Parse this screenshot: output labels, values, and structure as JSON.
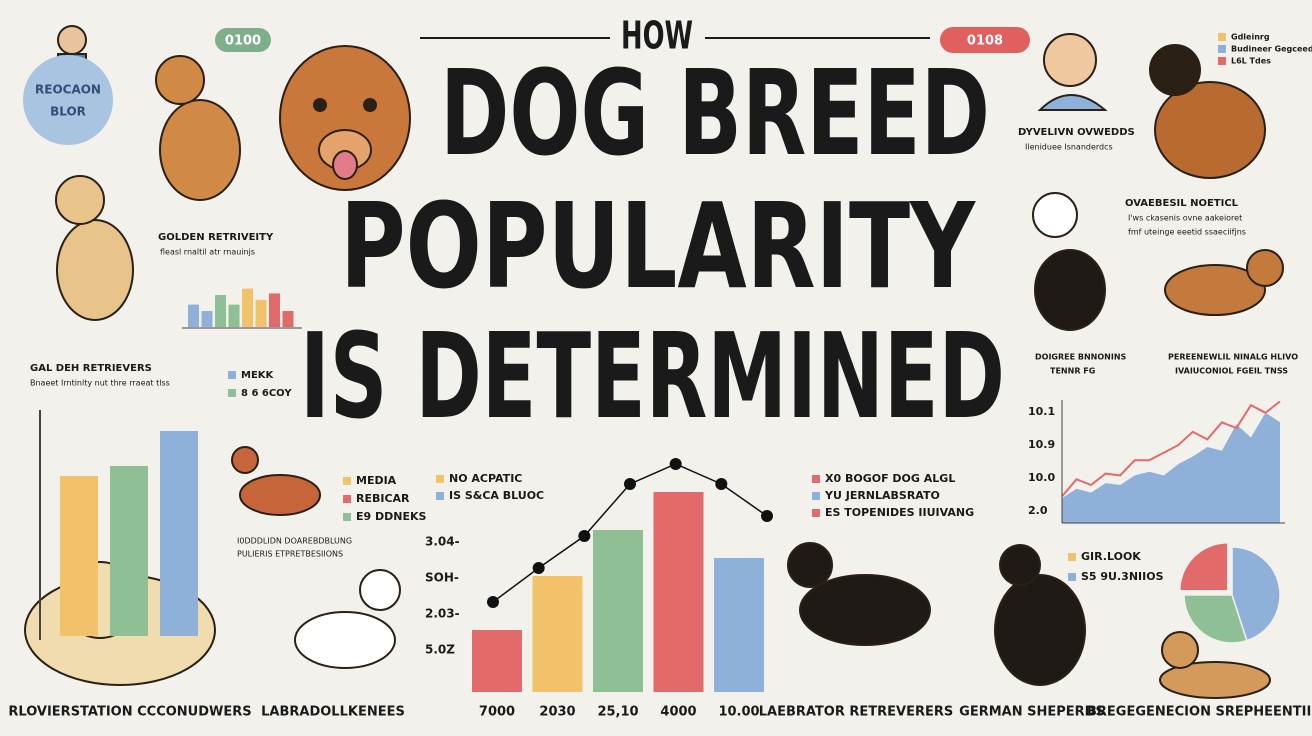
{
  "header": {
    "kicker": "HOW",
    "title_lines": [
      "DOG BREED",
      "POPULARITY",
      "IS DETERMINED"
    ]
  },
  "badge": {
    "lines": [
      "REOCAON",
      "BLOR"
    ]
  },
  "pills": [
    "0100",
    "0108"
  ],
  "left": {
    "golden_title": "GOLDEN RETRIVEITY",
    "golden_sub": "fleasl rnaltil atr rnauinjs",
    "retr_title": "GAL DEH RETRIEVERS",
    "retr_sub": "Bnaeet Irntinlty nut thre rraeat tlss",
    "mini_bars": {
      "values": [
        14,
        10,
        20,
        14,
        24,
        17,
        21,
        10
      ],
      "colors": [
        "#8fb0d8",
        "#8fb0d8",
        "#8fbf94",
        "#8fbf94",
        "#f2c26b",
        "#f2c26b",
        "#e26a6a",
        "#e26a6a"
      ]
    },
    "legend": [
      {
        "label": "MEKK",
        "color": "#8fb0d8"
      },
      {
        "label": "8 6 6COY",
        "color": "#8fbf94"
      }
    ],
    "bars": {
      "values": [
        160,
        170,
        205
      ],
      "colors": [
        "#f2c26b",
        "#8fbf94",
        "#8fb0d8"
      ]
    },
    "media_legend": [
      {
        "label": "MEDIA",
        "color": "#f2c26b"
      },
      {
        "label": "REBICAR",
        "color": "#e26a6a"
      },
      {
        "label": "E9 DDNEKS",
        "color": "#8fbf94"
      }
    ],
    "caption": [
      "I0DDDLIDN DOAREBDBLUNG",
      "PULIERIS ETPRETBESIIONS"
    ]
  },
  "center": {
    "legend": [
      {
        "label": "NO ACPATIC",
        "color": "#f2c26b"
      },
      {
        "label": "IS S&CA BLUOC",
        "color": "#8fb0d8"
      }
    ],
    "ylabels": [
      "3.04-",
      "SOH-",
      "2.03-",
      "5.0Z"
    ],
    "xlabels": [
      "7000",
      "2030",
      "25,10",
      "4000",
      "10.00"
    ],
    "bars": {
      "values": [
        31,
        58,
        81,
        100,
        67
      ],
      "colors": [
        "#e26a6a",
        "#f2c26b",
        "#8fbf94",
        "#e26a6a",
        "#8fb0d8"
      ]
    },
    "line": [
      45,
      62,
      78,
      104,
      114,
      104,
      88
    ]
  },
  "right": {
    "legend_mid": [
      {
        "label": "X0 BOGOF DOG ALGL",
        "color": "#e26a6a"
      },
      {
        "label": "YU JERNLABSRATO",
        "color": "#8fb0d8"
      },
      {
        "label": "ES TOPENIDES IIUIVANG",
        "color": "#e26a6a"
      }
    ],
    "owner_title": "DYVELIVN OVWEDDS",
    "owner_sub": "Ileniduee Isnanderdcs",
    "top_legend": [
      {
        "label": "Gdleinrg",
        "color": "#f2c26b"
      },
      {
        "label": "Budineer Gegceedd",
        "color": "#8fb0d8"
      },
      {
        "label": "L6L Tdes",
        "color": "#e26a6a"
      }
    ],
    "notice_title": "OVAEBESIL NOETICL",
    "notice_sub": [
      "I'ws ckasenis ovne aakeioret",
      "fmf uteinge eeetid ssaeciifjns"
    ],
    "cap_left": [
      "DOIGREE BNNONINS",
      "TENNR FG"
    ],
    "cap_right": [
      "PEREENEWLIL NINALG HLIVO",
      "IVAIUCONIOL FGEIL TNSS"
    ],
    "line_chart": {
      "ylabels": [
        "10.1",
        "10.9",
        "10.0",
        "2.0"
      ],
      "area": [
        13,
        18,
        16,
        21,
        20,
        25,
        27,
        25,
        31,
        35,
        40,
        38,
        52,
        45,
        58,
        53
      ],
      "line": [
        14,
        23,
        20,
        26,
        25,
        33,
        33,
        37,
        41,
        48,
        44,
        53,
        50,
        62,
        58,
        64
      ],
      "area_color": "#8fb0d8",
      "line_color": "#e26a6a"
    },
    "pie_legend": [
      {
        "label": "GIR.LOOK",
        "color": "#f2c26b"
      },
      {
        "label": "S5 9U.3NIIOS",
        "color": "#8fb0d8"
      }
    ],
    "pie": {
      "values": [
        45,
        30,
        25
      ],
      "colors": [
        "#8fb0d8",
        "#8fbf94",
        "#e26a6a"
      ]
    }
  },
  "footer": [
    "RLOVIERSTATION CCCONUDWERS",
    "LABRADOLLKENEES",
    "LAEBRATOR RETREVERERS",
    "GERMAN SHEPERDS",
    "BREGEGENECION SREPHEENTIIND"
  ]
}
